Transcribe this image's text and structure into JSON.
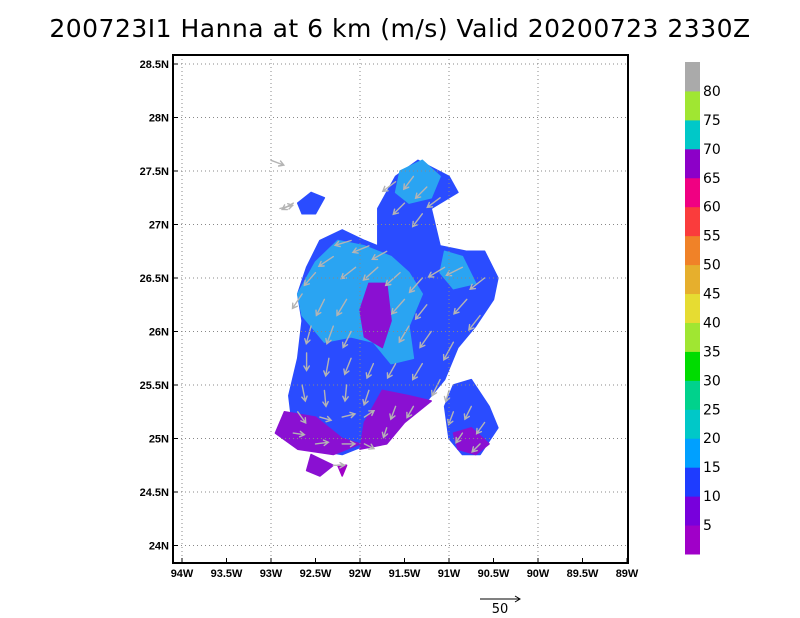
{
  "chart_data": {
    "type": "heatmap",
    "title": "200723I1 Hanna at 6 km (m/s) Valid 20200723 2330Z",
    "x_ticks": [
      "94W",
      "93.5W",
      "93W",
      "92.5W",
      "92W",
      "91.5W",
      "91W",
      "90.5W",
      "90W",
      "89.5W",
      "89W"
    ],
    "y_ticks": [
      "28.5N",
      "28N",
      "27.5N",
      "27N",
      "26.5N",
      "26N",
      "25.5N",
      "25N",
      "24.5N",
      "24N"
    ],
    "xlim": [
      -94,
      -89
    ],
    "ylim": [
      23.9,
      28.5
    ],
    "grid": true,
    "colorbar": {
      "labels": [
        "5",
        "10",
        "15",
        "20",
        "25",
        "30",
        "35",
        "40",
        "45",
        "50",
        "55",
        "60",
        "65",
        "70",
        "75",
        "80"
      ],
      "bins": [
        {
          "range": [
            0,
            5
          ],
          "color": "#a000c8"
        },
        {
          "range": [
            5,
            10
          ],
          "color": "#7800dc"
        },
        {
          "range": [
            10,
            15
          ],
          "color": "#1e3cff"
        },
        {
          "range": [
            15,
            20
          ],
          "color": "#00a0ff"
        },
        {
          "range": [
            20,
            25
          ],
          "color": "#00c8c8"
        },
        {
          "range": [
            25,
            30
          ],
          "color": "#00d28c"
        },
        {
          "range": [
            30,
            35
          ],
          "color": "#00dc00"
        },
        {
          "range": [
            35,
            40
          ],
          "color": "#a0e632"
        },
        {
          "range": [
            40,
            45
          ],
          "color": "#e6dc32"
        },
        {
          "range": [
            45,
            50
          ],
          "color": "#e6af2d"
        },
        {
          "range": [
            50,
            55
          ],
          "color": "#f08228"
        },
        {
          "range": [
            55,
            60
          ],
          "color": "#fa3c3c"
        },
        {
          "range": [
            60,
            65
          ],
          "color": "#f00082"
        },
        {
          "range": [
            65,
            70
          ],
          "color": "#8c00c8"
        },
        {
          "range": [
            70,
            75
          ],
          "color": "#00c8c8"
        },
        {
          "range": [
            75,
            80
          ],
          "color": "#a0e632"
        },
        {
          "range": [
            80,
            85
          ],
          "color": "#aaaaaa"
        }
      ]
    },
    "reference_vector": {
      "label": "50",
      "value": 50
    },
    "regions": [
      {
        "level": 10,
        "color": "#2a4cff",
        "outline": [
          [
            -92.75,
            25.05
          ],
          [
            -92.8,
            25.4
          ],
          [
            -92.7,
            25.75
          ],
          [
            -92.65,
            26.1
          ],
          [
            -92.7,
            26.35
          ],
          [
            -92.6,
            26.6
          ],
          [
            -92.45,
            26.85
          ],
          [
            -92.2,
            26.95
          ],
          [
            -91.95,
            26.85
          ],
          [
            -91.8,
            26.8
          ],
          [
            -91.8,
            27.15
          ],
          [
            -91.6,
            27.45
          ],
          [
            -91.35,
            27.6
          ],
          [
            -91.0,
            27.45
          ],
          [
            -90.9,
            27.3
          ],
          [
            -91.2,
            27.15
          ],
          [
            -91.1,
            26.8
          ],
          [
            -90.8,
            26.75
          ],
          [
            -90.6,
            26.75
          ],
          [
            -90.45,
            26.5
          ],
          [
            -90.5,
            26.3
          ],
          [
            -90.7,
            26.05
          ],
          [
            -90.9,
            25.85
          ],
          [
            -91.05,
            25.55
          ],
          [
            -91.25,
            25.35
          ],
          [
            -91.55,
            25.25
          ],
          [
            -91.9,
            24.95
          ],
          [
            -92.2,
            24.85
          ],
          [
            -92.55,
            24.9
          ]
        ]
      },
      {
        "level": 10,
        "color": "#2a4cff",
        "outline": [
          [
            -91.05,
            25.3
          ],
          [
            -90.95,
            25.5
          ],
          [
            -90.75,
            25.55
          ],
          [
            -90.55,
            25.3
          ],
          [
            -90.45,
            25.1
          ],
          [
            -90.65,
            24.85
          ],
          [
            -90.85,
            24.85
          ],
          [
            -91.0,
            25.0
          ]
        ]
      },
      {
        "level": 10,
        "color": "#2a4cff",
        "outline": [
          [
            -92.7,
            27.2
          ],
          [
            -92.55,
            27.3
          ],
          [
            -92.4,
            27.25
          ],
          [
            -92.5,
            27.1
          ],
          [
            -92.65,
            27.1
          ]
        ]
      },
      {
        "level": 15,
        "color": "#2aa4f2",
        "outline": [
          [
            -92.7,
            26.35
          ],
          [
            -92.5,
            26.65
          ],
          [
            -92.25,
            26.85
          ],
          [
            -91.95,
            26.8
          ],
          [
            -91.65,
            26.7
          ],
          [
            -91.45,
            26.55
          ],
          [
            -91.3,
            26.35
          ],
          [
            -91.45,
            26.05
          ],
          [
            -91.4,
            25.75
          ],
          [
            -91.65,
            25.7
          ],
          [
            -91.85,
            25.9
          ],
          [
            -92.1,
            25.95
          ],
          [
            -92.4,
            25.9
          ],
          [
            -92.55,
            26.05
          ],
          [
            -92.65,
            26.15
          ]
        ]
      },
      {
        "level": 15,
        "color": "#2aa4f2",
        "outline": [
          [
            -91.55,
            27.5
          ],
          [
            -91.3,
            27.6
          ],
          [
            -91.1,
            27.45
          ],
          [
            -91.2,
            27.25
          ],
          [
            -91.45,
            27.2
          ],
          [
            -91.6,
            27.3
          ]
        ]
      },
      {
        "level": 15,
        "color": "#2aa4f2",
        "outline": [
          [
            -91.05,
            26.75
          ],
          [
            -90.85,
            26.7
          ],
          [
            -90.7,
            26.45
          ],
          [
            -90.95,
            26.4
          ],
          [
            -91.1,
            26.55
          ]
        ]
      },
      {
        "level": 5,
        "color": "#8a10d2",
        "outline": [
          [
            -91.9,
            26.45
          ],
          [
            -91.7,
            26.45
          ],
          [
            -91.65,
            26.1
          ],
          [
            -91.75,
            25.85
          ],
          [
            -91.95,
            25.95
          ],
          [
            -92.0,
            26.2
          ]
        ]
      },
      {
        "level": 5,
        "color": "#8a10d2",
        "outline": [
          [
            -91.75,
            25.45
          ],
          [
            -91.45,
            25.4
          ],
          [
            -91.2,
            25.35
          ],
          [
            -91.5,
            25.15
          ],
          [
            -91.7,
            24.95
          ],
          [
            -92.0,
            24.9
          ],
          [
            -91.95,
            25.15
          ]
        ]
      },
      {
        "level": 5,
        "color": "#8a10d2",
        "outline": [
          [
            -92.95,
            25.05
          ],
          [
            -92.85,
            25.25
          ],
          [
            -92.5,
            25.2
          ],
          [
            -92.2,
            25.0
          ],
          [
            -92.0,
            24.95
          ],
          [
            -92.3,
            24.85
          ],
          [
            -92.7,
            24.9
          ]
        ]
      },
      {
        "level": 5,
        "color": "#8a10d2",
        "outline": [
          [
            -92.55,
            24.85
          ],
          [
            -92.3,
            24.75
          ],
          [
            -92.45,
            24.65
          ],
          [
            -92.6,
            24.7
          ]
        ]
      },
      {
        "level": 5,
        "color": "#8a10d2",
        "outline": [
          [
            -90.95,
            25.05
          ],
          [
            -90.75,
            25.1
          ],
          [
            -90.55,
            24.95
          ],
          [
            -90.7,
            24.85
          ],
          [
            -90.9,
            24.9
          ]
        ]
      },
      {
        "level": 0,
        "color": "#a000c8",
        "outline": [
          [
            -92.25,
            24.75
          ],
          [
            -92.15,
            24.75
          ],
          [
            -92.2,
            24.65
          ]
        ]
      }
    ],
    "wind_vectors": [
      {
        "lon": -93.0,
        "lat": 27.6,
        "u": 8,
        "v": -3
      },
      {
        "lon": -92.75,
        "lat": 27.2,
        "u": -7,
        "v": -4
      },
      {
        "lon": -92.9,
        "lat": 27.15,
        "u": 8,
        "v": 2
      },
      {
        "lon": -91.6,
        "lat": 27.4,
        "u": -8,
        "v": -6
      },
      {
        "lon": -91.4,
        "lat": 27.45,
        "u": -6,
        "v": -8
      },
      {
        "lon": -91.25,
        "lat": 27.35,
        "u": -7,
        "v": -7
      },
      {
        "lon": -91.5,
        "lat": 27.2,
        "u": -7,
        "v": -7
      },
      {
        "lon": -91.3,
        "lat": 27.1,
        "u": -6,
        "v": -8
      },
      {
        "lon": -91.1,
        "lat": 27.25,
        "u": -8,
        "v": -6
      },
      {
        "lon": -92.1,
        "lat": 26.85,
        "u": -10,
        "v": -3
      },
      {
        "lon": -91.9,
        "lat": 26.8,
        "u": -10,
        "v": -4
      },
      {
        "lon": -91.7,
        "lat": 26.75,
        "u": -9,
        "v": -5
      },
      {
        "lon": -92.3,
        "lat": 26.7,
        "u": -9,
        "v": -6
      },
      {
        "lon": -92.5,
        "lat": 26.55,
        "u": -7,
        "v": -8
      },
      {
        "lon": -92.65,
        "lat": 26.35,
        "u": -6,
        "v": -9
      },
      {
        "lon": -92.05,
        "lat": 26.6,
        "u": -9,
        "v": -7
      },
      {
        "lon": -91.8,
        "lat": 26.6,
        "u": -9,
        "v": -8
      },
      {
        "lon": -91.55,
        "lat": 26.55,
        "u": -9,
        "v": -8
      },
      {
        "lon": -91.3,
        "lat": 26.5,
        "u": -8,
        "v": -9
      },
      {
        "lon": -92.4,
        "lat": 26.3,
        "u": -5,
        "v": -10
      },
      {
        "lon": -92.15,
        "lat": 26.3,
        "u": -6,
        "v": -10
      },
      {
        "lon": -91.5,
        "lat": 26.3,
        "u": -8,
        "v": -9
      },
      {
        "lon": -91.25,
        "lat": 26.25,
        "u": -7,
        "v": -9
      },
      {
        "lon": -91.05,
        "lat": 26.6,
        "u": -10,
        "v": -6
      },
      {
        "lon": -90.85,
        "lat": 26.6,
        "u": -10,
        "v": -5
      },
      {
        "lon": -90.6,
        "lat": 26.5,
        "u": -9,
        "v": -7
      },
      {
        "lon": -90.8,
        "lat": 26.3,
        "u": -8,
        "v": -9
      },
      {
        "lon": -90.65,
        "lat": 26.15,
        "u": -7,
        "v": -9
      },
      {
        "lon": -92.55,
        "lat": 26.05,
        "u": -3,
        "v": -11
      },
      {
        "lon": -92.3,
        "lat": 26.05,
        "u": -4,
        "v": -11
      },
      {
        "lon": -92.1,
        "lat": 26.0,
        "u": -5,
        "v": -10
      },
      {
        "lon": -91.45,
        "lat": 26.05,
        "u": -6,
        "v": -10
      },
      {
        "lon": -91.2,
        "lat": 26.0,
        "u": -7,
        "v": -10
      },
      {
        "lon": -90.95,
        "lat": 25.9,
        "u": -6,
        "v": -11
      },
      {
        "lon": -92.6,
        "lat": 25.8,
        "u": 0,
        "v": -11
      },
      {
        "lon": -92.35,
        "lat": 25.75,
        "u": -2,
        "v": -11
      },
      {
        "lon": -92.1,
        "lat": 25.75,
        "u": -4,
        "v": -10
      },
      {
        "lon": -91.85,
        "lat": 25.7,
        "u": -4,
        "v": -9
      },
      {
        "lon": -91.6,
        "lat": 25.7,
        "u": -5,
        "v": -9
      },
      {
        "lon": -91.3,
        "lat": 25.7,
        "u": -6,
        "v": -10
      },
      {
        "lon": -91.1,
        "lat": 25.55,
        "u": -5,
        "v": -10
      },
      {
        "lon": -92.65,
        "lat": 25.5,
        "u": 2,
        "v": -10
      },
      {
        "lon": -92.4,
        "lat": 25.45,
        "u": 1,
        "v": -10
      },
      {
        "lon": -92.15,
        "lat": 25.5,
        "u": -1,
        "v": -10
      },
      {
        "lon": -91.9,
        "lat": 25.45,
        "u": -3,
        "v": -9
      },
      {
        "lon": -91.6,
        "lat": 25.3,
        "u": -3,
        "v": -8
      },
      {
        "lon": -91.4,
        "lat": 25.3,
        "u": -4,
        "v": -7
      },
      {
        "lon": -92.7,
        "lat": 25.25,
        "u": 5,
        "v": -7
      },
      {
        "lon": -92.45,
        "lat": 25.2,
        "u": 7,
        "v": -2
      },
      {
        "lon": -92.2,
        "lat": 25.2,
        "u": 8,
        "v": 2
      },
      {
        "lon": -91.95,
        "lat": 25.2,
        "u": 6,
        "v": 4
      },
      {
        "lon": -91.7,
        "lat": 25.1,
        "u": -2,
        "v": -6
      },
      {
        "lon": -92.75,
        "lat": 25.05,
        "u": 7,
        "v": -1
      },
      {
        "lon": -92.5,
        "lat": 24.95,
        "u": 8,
        "v": 1
      },
      {
        "lon": -92.2,
        "lat": 24.95,
        "u": 8,
        "v": 0
      },
      {
        "lon": -91.95,
        "lat": 24.95,
        "u": 6,
        "v": -3
      },
      {
        "lon": -92.3,
        "lat": 24.75,
        "u": 7,
        "v": 0
      },
      {
        "lon": -90.95,
        "lat": 25.25,
        "u": -3,
        "v": -8
      },
      {
        "lon": -90.75,
        "lat": 25.3,
        "u": -4,
        "v": -8
      },
      {
        "lon": -90.6,
        "lat": 25.15,
        "u": -5,
        "v": -7
      },
      {
        "lon": -90.85,
        "lat": 25.05,
        "u": -4,
        "v": -6
      },
      {
        "lon": -90.65,
        "lat": 24.95,
        "u": -5,
        "v": -5
      },
      {
        "lon": -91.0,
        "lat": 25.45,
        "u": -2,
        "v": -7
      }
    ]
  }
}
